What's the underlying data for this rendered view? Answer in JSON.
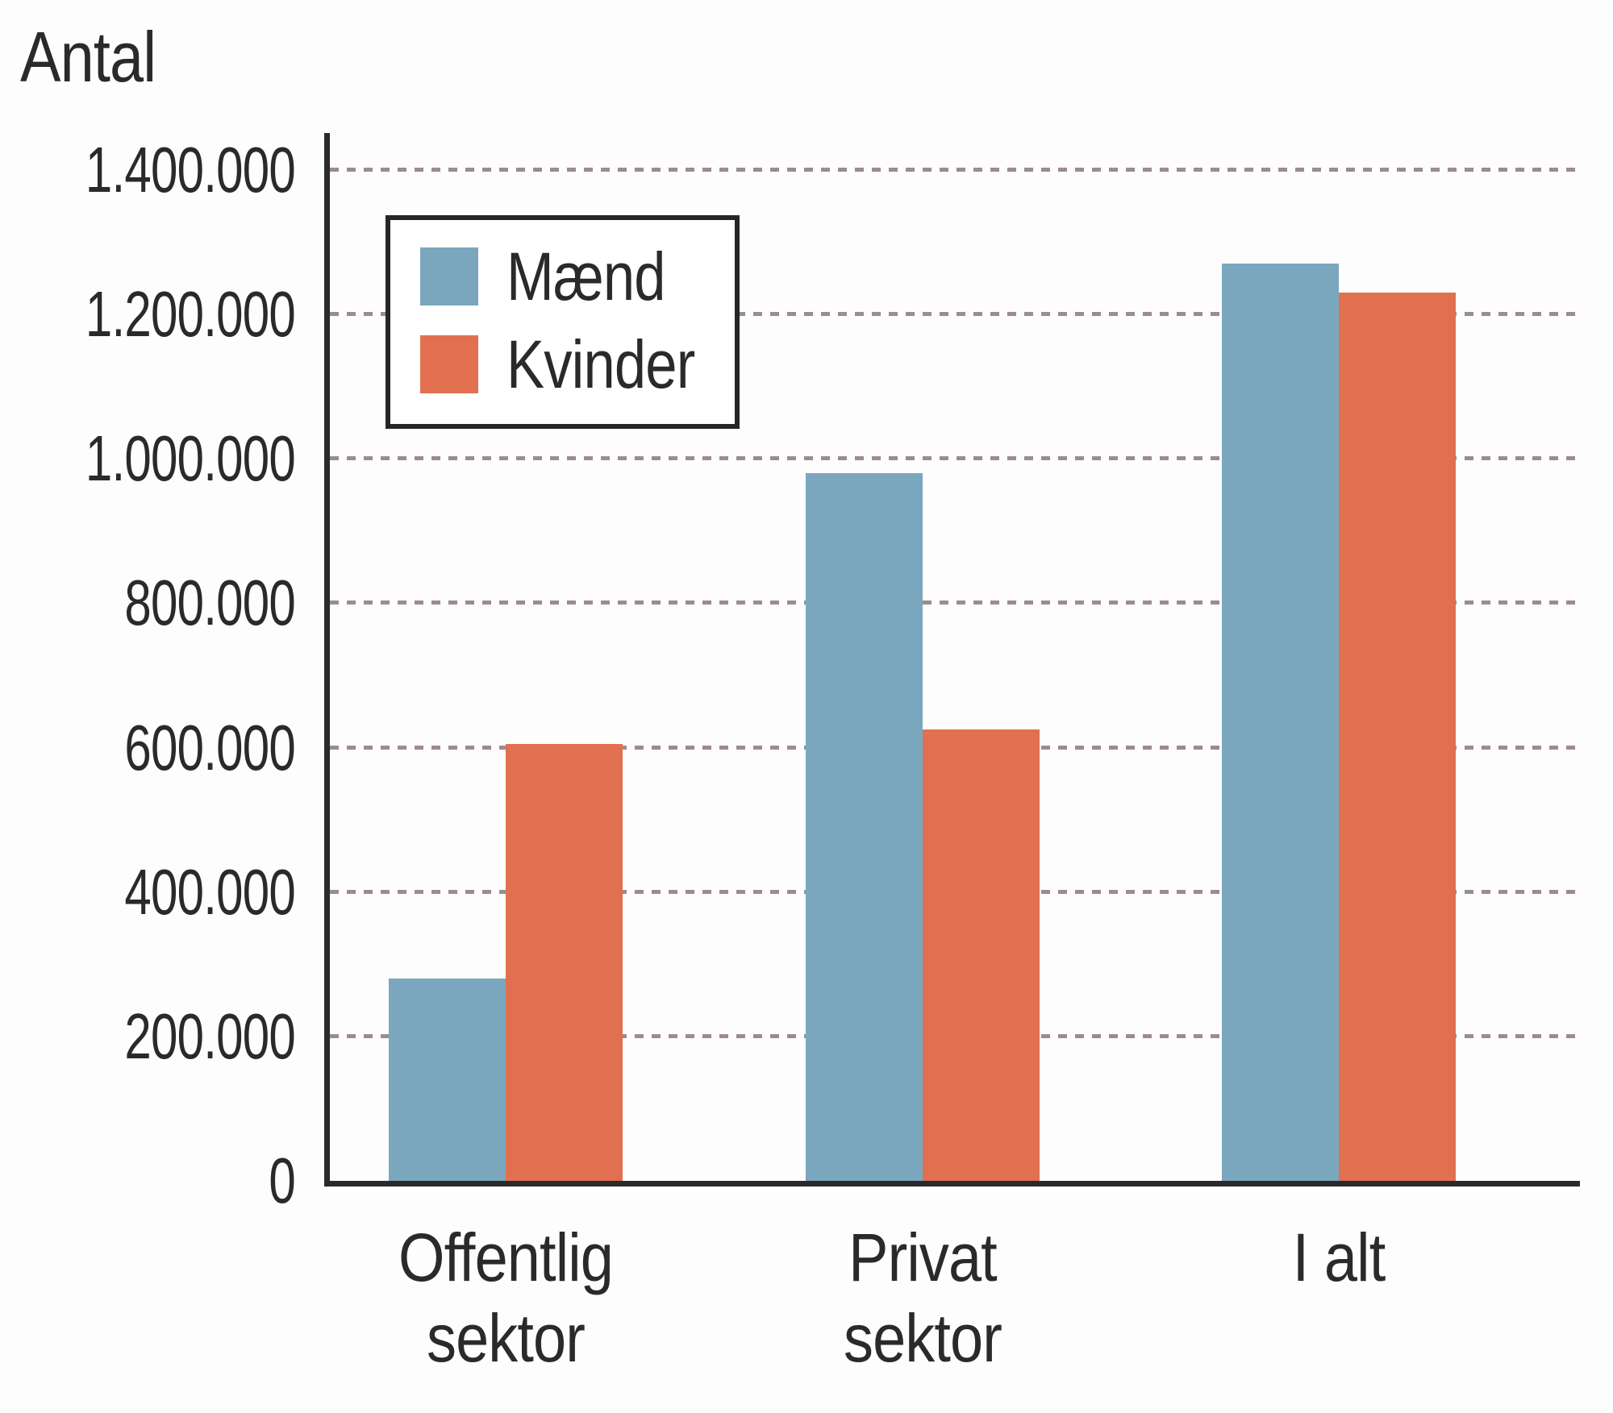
{
  "chart_data": {
    "type": "bar",
    "title": "",
    "ylabel": "Antal",
    "xlabel": "",
    "categories": [
      "Offentlig sektor",
      "Privat sektor",
      "I alt"
    ],
    "category_lines": [
      [
        "Offentlig",
        "sektor"
      ],
      [
        "Privat",
        "sektor"
      ],
      [
        "I alt"
      ]
    ],
    "series": [
      {
        "name": "Mænd",
        "color": "#7AA7BD",
        "values": [
          280000,
          980000,
          1270000
        ]
      },
      {
        "name": "Kvinder",
        "color": "#E17050",
        "values": [
          605000,
          625000,
          1230000
        ]
      }
    ],
    "ylim": [
      0,
      1400000
    ],
    "ytick_step": 200000,
    "yticks": [
      {
        "value": 0,
        "label": "0"
      },
      {
        "value": 200000,
        "label": "200.000"
      },
      {
        "value": 400000,
        "label": "400.000"
      },
      {
        "value": 600000,
        "label": "600.000"
      },
      {
        "value": 800000,
        "label": "800.000"
      },
      {
        "value": 1000000,
        "label": "1.000.000"
      },
      {
        "value": 1200000,
        "label": "1.200.000"
      },
      {
        "value": 1400000,
        "label": "1.400.000"
      }
    ],
    "grid": "horizontal-dashed",
    "legend_position": "upper-left",
    "colors": {
      "axis": "#2A2A2A",
      "gridline": "#9C8C8A",
      "text": "#2A2A2A",
      "background": "#FDFDFD"
    }
  },
  "legend": {
    "items": [
      {
        "label": "Mænd",
        "color": "#7AA7BD"
      },
      {
        "label": "Kvinder",
        "color": "#E17050"
      }
    ]
  }
}
